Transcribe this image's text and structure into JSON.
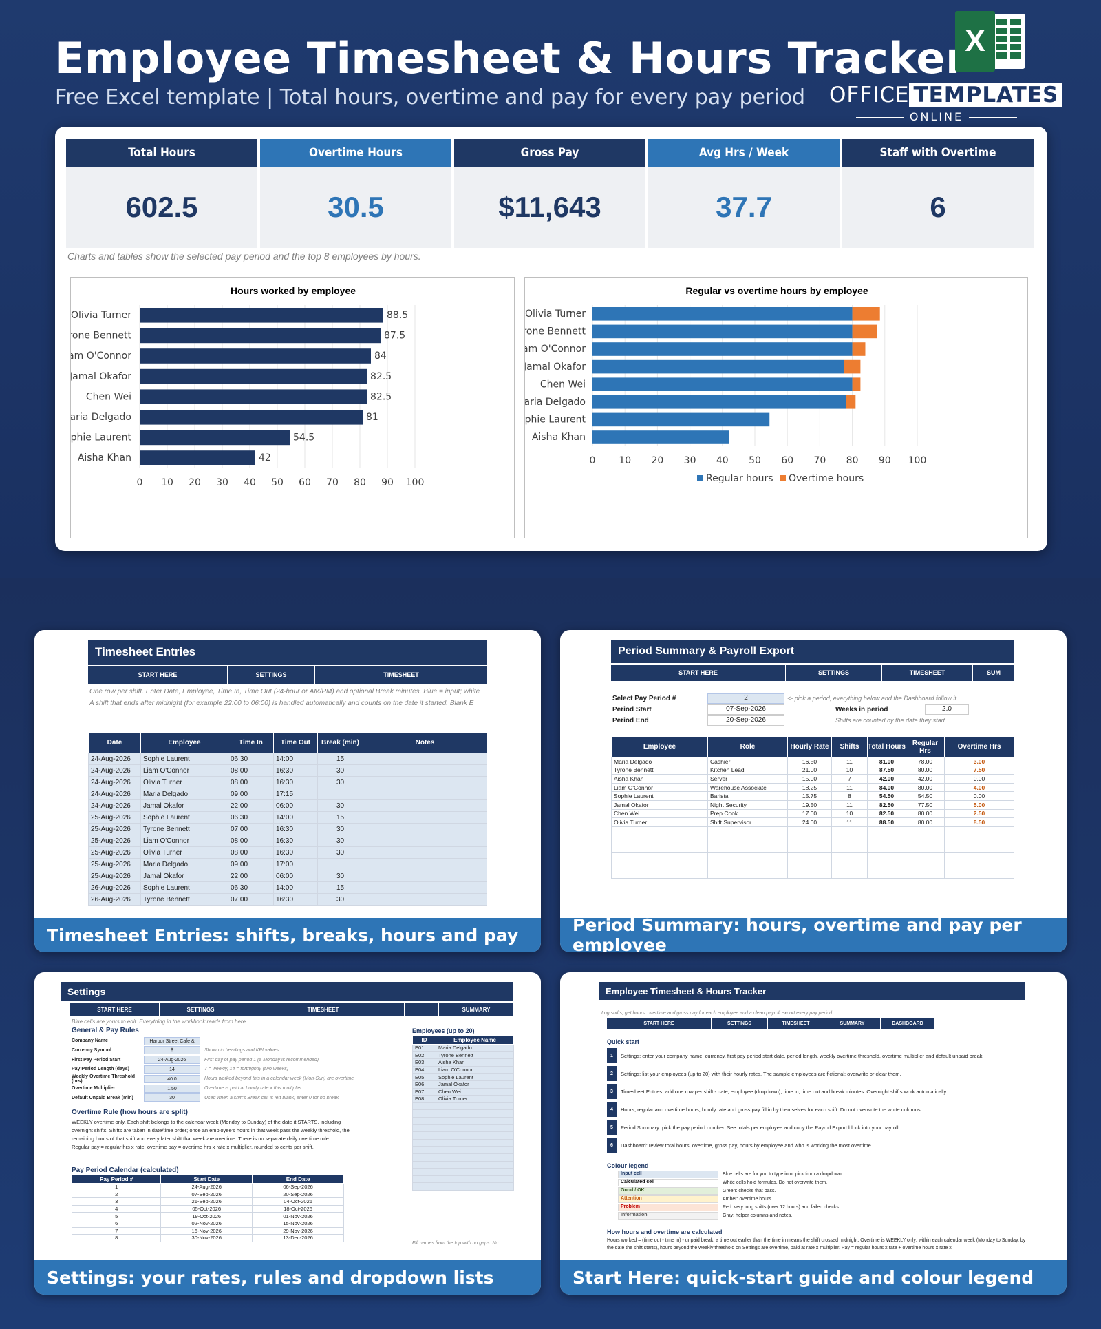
{
  "header": {
    "title": "Employee Timesheet & Hours Tracker",
    "subtitle": "Free Excel template  |  Total hours, overtime and pay for every pay period",
    "brand_main_1": "OFFICE",
    "brand_main_2": "TEMPLATES",
    "brand_sub": "ONLINE",
    "excel_icon_letter": "X"
  },
  "kpis": [
    {
      "label": "Total Hours",
      "value": "602.5"
    },
    {
      "label": "Overtime Hours",
      "value": "30.5"
    },
    {
      "label": "Gross Pay",
      "value": "$11,643"
    },
    {
      "label": "Avg Hrs / Week",
      "value": "37.7"
    },
    {
      "label": "Staff with Overtime",
      "value": "6"
    }
  ],
  "dashboard_note": "Charts and tables show the selected pay period and the top 8 employees by hours.",
  "chart_data": [
    {
      "type": "bar",
      "title": "Hours worked by employee",
      "categories": [
        "Olivia Turner",
        "Tyrone Bennett",
        "Liam O'Connor",
        "Jamal Okafor",
        "Chen Wei",
        "Maria Delgado",
        "Sophie Laurent",
        "Aisha Khan"
      ],
      "values": [
        88.5,
        87.5,
        84,
        82.5,
        82.5,
        81,
        54.5,
        42
      ],
      "xlim": [
        0,
        100
      ],
      "ticks": [
        0,
        10,
        20,
        30,
        40,
        50,
        60,
        70,
        80,
        90,
        100
      ],
      "color": "#1f3864"
    },
    {
      "type": "bar",
      "title": "Regular vs overtime hours by employee",
      "categories": [
        "Olivia Turner",
        "Tyrone Bennett",
        "Liam O'Connor",
        "Jamal Okafor",
        "Chen Wei",
        "Maria Delgado",
        "Sophie Laurent",
        "Aisha Khan"
      ],
      "series": [
        {
          "name": "Regular hours",
          "values": [
            80,
            80,
            80,
            77.5,
            80,
            78,
            54.5,
            42
          ],
          "color": "#2e75b6"
        },
        {
          "name": "Overtime hours",
          "values": [
            8.5,
            7.5,
            4,
            5,
            2.5,
            3,
            0,
            0
          ],
          "color": "#ed7d31"
        }
      ],
      "xlim": [
        0,
        100
      ],
      "ticks": [
        0,
        10,
        20,
        30,
        40,
        50,
        60,
        70,
        80,
        90,
        100
      ],
      "legend": "bottom"
    }
  ],
  "cards": {
    "timesheet": {
      "caption": "Timesheet Entries: shifts, breaks, hours and pay",
      "title": "Timesheet Entries",
      "nav": [
        "START HERE",
        "SETTINGS",
        "TIMESHEET"
      ],
      "note1": "One row per shift. Enter Date, Employee, Time In, Time Out (24-hour or AM/PM) and optional Break minutes. Blue = input; white",
      "note2": "A shift that ends after midnight (for example 22:00 to 06:00) is handled automatically and counts on the date it started. Blank E",
      "headers": [
        "Date",
        "Employee",
        "Time In",
        "Time Out",
        "Break (min)",
        "Notes"
      ],
      "rows": [
        [
          "24-Aug-2026",
          "Sophie Laurent",
          "06:30",
          "14:00",
          "15"
        ],
        [
          "24-Aug-2026",
          "Liam O'Connor",
          "08:00",
          "16:30",
          "30"
        ],
        [
          "24-Aug-2026",
          "Olivia Turner",
          "08:00",
          "16:30",
          "30"
        ],
        [
          "24-Aug-2026",
          "Maria Delgado",
          "09:00",
          "17:15",
          ""
        ],
        [
          "24-Aug-2026",
          "Jamal Okafor",
          "22:00",
          "06:00",
          "30"
        ],
        [
          "25-Aug-2026",
          "Sophie Laurent",
          "06:30",
          "14:00",
          "15"
        ],
        [
          "25-Aug-2026",
          "Tyrone Bennett",
          "07:00",
          "16:30",
          "30"
        ],
        [
          "25-Aug-2026",
          "Liam O'Connor",
          "08:00",
          "16:30",
          "30"
        ],
        [
          "25-Aug-2026",
          "Olivia Turner",
          "08:00",
          "16:30",
          "30"
        ],
        [
          "25-Aug-2026",
          "Maria Delgado",
          "09:00",
          "17:00",
          ""
        ],
        [
          "25-Aug-2026",
          "Jamal Okafor",
          "22:00",
          "06:00",
          "30"
        ],
        [
          "26-Aug-2026",
          "Sophie Laurent",
          "06:30",
          "14:00",
          "15"
        ],
        [
          "26-Aug-2026",
          "Tyrone Bennett",
          "07:00",
          "16:30",
          "30"
        ]
      ]
    },
    "summary": {
      "caption": "Period Summary: hours, overtime and pay per employee",
      "title": "Period Summary & Payroll Export",
      "nav": [
        "START HERE",
        "SETTINGS",
        "TIMESHEET",
        "SUM"
      ],
      "sel_label": "Select Pay Period #",
      "sel_value": "2",
      "sel_hint": "<- pick a period; everything below and the Dashboard follow it",
      "start_label": "Period Start",
      "start_value": "07-Sep-2026",
      "end_label": "Period End",
      "end_value": "20-Sep-2026",
      "weeks_label": "Weeks in period",
      "weeks_value": "2.0",
      "weeks_hint": "Shifts are counted by the date they start.",
      "headers": [
        "Employee",
        "Role",
        "Hourly Rate",
        "Shifts",
        "Total Hours",
        "Regular Hrs",
        "Overtime Hrs"
      ],
      "rows": [
        [
          "Maria Delgado",
          "Cashier",
          "16.50",
          "11",
          "81.00",
          "78.00",
          "3.00"
        ],
        [
          "Tyrone Bennett",
          "Kitchen Lead",
          "21.00",
          "10",
          "87.50",
          "80.00",
          "7.50"
        ],
        [
          "Aisha Khan",
          "Server",
          "15.00",
          "7",
          "42.00",
          "42.00",
          "0.00"
        ],
        [
          "Liam O'Connor",
          "Warehouse Associate",
          "18.25",
          "11",
          "84.00",
          "80.00",
          "4.00"
        ],
        [
          "Sophie Laurent",
          "Barista",
          "15.75",
          "8",
          "54.50",
          "54.50",
          "0.00"
        ],
        [
          "Jamal Okafor",
          "Night Security",
          "19.50",
          "11",
          "82.50",
          "77.50",
          "5.00"
        ],
        [
          "Chen Wei",
          "Prep Cook",
          "17.00",
          "10",
          "82.50",
          "80.00",
          "2.50"
        ],
        [
          "Olivia Turner",
          "Shift Supervisor",
          "24.00",
          "11",
          "88.50",
          "80.00",
          "8.50"
        ]
      ]
    },
    "settings": {
      "caption": "Settings: your rates, rules and dropdown lists",
      "title": "Settings",
      "nav": [
        "START HERE",
        "SETTINGS",
        "TIMESHEET",
        "",
        "SUMMARY"
      ],
      "note": "Blue cells are yours to edit. Everything in the workbook reads from here.",
      "section1": "General & Pay Rules",
      "rules": [
        [
          "Company Name",
          "Harbor Street Cafe & Kitchen",
          ""
        ],
        [
          "Currency Symbol",
          "$",
          "Shown in headings and KPI values"
        ],
        [
          "First Pay Period Start",
          "24-Aug-2026",
          "First day of pay period 1 (a Monday is recommended)"
        ],
        [
          "Pay Period Length (days)",
          "14",
          "7 = weekly, 14 = fortnightly (two weeks)"
        ],
        [
          "Weekly Overtime Threshold (hrs)",
          "40.0",
          "Hours worked beyond this in a calendar week (Mon-Sun) are overtime"
        ],
        [
          "Overtime Multiplier",
          "1.50",
          "Overtime is paid at hourly rate x this multiplier"
        ],
        [
          "Default Unpaid Break (min)",
          "30",
          "Used when a shift's Break cell is left blank; enter 0 for no break"
        ]
      ],
      "ot_title": "Overtime Rule (how hours are split)",
      "ot_text": "WEEKLY overtime only. Each shift belongs to the calendar week (Monday to Sunday) of the date it STARTS, including overnight shifts. Shifts are taken in date/time order; once an employee's hours in that week pass the weekly threshold, the remaining hours of that shift and every later shift that week are overtime. There is no separate daily overtime rule. Regular pay = regular hrs x rate; overtime pay = overtime hrs x rate x multiplier, rounded to cents per shift.",
      "cal_title": "Pay Period Calendar (calculated)",
      "cal_headers": [
        "Pay Period #",
        "Start Date",
        "End Date"
      ],
      "cal_rows": [
        [
          "1",
          "24-Aug-2026",
          "06-Sep-2026"
        ],
        [
          "2",
          "07-Sep-2026",
          "20-Sep-2026"
        ],
        [
          "3",
          "21-Sep-2026",
          "04-Oct-2026"
        ],
        [
          "4",
          "05-Oct-2026",
          "18-Oct-2026"
        ],
        [
          "5",
          "19-Oct-2026",
          "01-Nov-2026"
        ],
        [
          "6",
          "02-Nov-2026",
          "15-Nov-2026"
        ],
        [
          "7",
          "16-Nov-2026",
          "29-Nov-2026"
        ],
        [
          "8",
          "30-Nov-2026",
          "13-Dec-2026"
        ]
      ],
      "emp_title": "Employees (up to 20)",
      "emp_headers": [
        "ID",
        "Employee Name"
      ],
      "emp_rows": [
        [
          "E01",
          "Maria Delgado"
        ],
        [
          "E02",
          "Tyrone Bennett"
        ],
        [
          "E03",
          "Aisha Khan"
        ],
        [
          "E04",
          "Liam O'Connor"
        ],
        [
          "E05",
          "Sophie Laurent"
        ],
        [
          "E06",
          "Jamal Okafor"
        ],
        [
          "E07",
          "Chen Wei"
        ],
        [
          "E08",
          "Olivia Turner"
        ]
      ],
      "emp_note": "Fill names from the top with no gaps. No"
    },
    "start": {
      "caption": "Start Here: quick-start guide and colour legend",
      "title": "Employee Timesheet & Hours Tracker",
      "subtitle": "Log shifts, get hours, overtime and gross pay for each employee and a clean payroll export every pay period.",
      "nav": [
        "START HERE",
        "SETTINGS",
        "TIMESHEET",
        "SUMMARY",
        "DASHBOARD"
      ],
      "qs_title": "Quick start",
      "steps": [
        "Settings: enter your company name, currency, first pay period start date, period length, weekly overtime threshold, overtime multiplier and default unpaid break.",
        "Settings: list your employees (up to 20) with their hourly rates. The sample employees are fictional; overwrite or clear them.",
        "Timesheet Entries: add one row per shift - date, employee (dropdown), time in, time out and break minutes. Overnight shifts work automatically.",
        "Hours, regular and overtime hours, hourly rate and gross pay fill in by themselves for each shift. Do not overwrite the white columns.",
        "Period Summary: pick the pay period number. See totals per employee and copy the Payroll Export block into your payroll.",
        "Dashboard: review total hours, overtime, gross pay, hours by employee and who is working the most overtime."
      ],
      "legend_title": "Colour legend",
      "legend": [
        [
          "Input cell",
          "Blue cells are for you to type in or pick from a dropdown.",
          "#dce6f1",
          "#1f3864"
        ],
        [
          "Calculated cell",
          "White cells hold formulas. Do not overwrite them.",
          "#ffffff",
          "#000000"
        ],
        [
          "Good / OK",
          "Green: checks that pass.",
          "#e2efda",
          "#375623"
        ],
        [
          "Attention",
          "Amber: overtime hours.",
          "#fff2cc",
          "#c55a11"
        ],
        [
          "Problem",
          "Red: very long shifts (over 12 hours) and failed checks.",
          "#fce4d6",
          "#c00000"
        ],
        [
          "Information",
          "Gray: helper columns and notes.",
          "#f2f2f2",
          "#595959"
        ]
      ],
      "how_title": "How hours and overtime are calculated",
      "how_text": "Hours worked = (time out - time in) - unpaid break; a time out earlier than the time in means the shift crossed midnight. Overtime is WEEKLY only: within each calendar week (Monday to Sunday, by the date the shift starts), hours beyond the weekly threshold on Settings are overtime, paid at rate x multiplier. Pay = regular hours x rate + overtime hours x rate x"
    }
  }
}
